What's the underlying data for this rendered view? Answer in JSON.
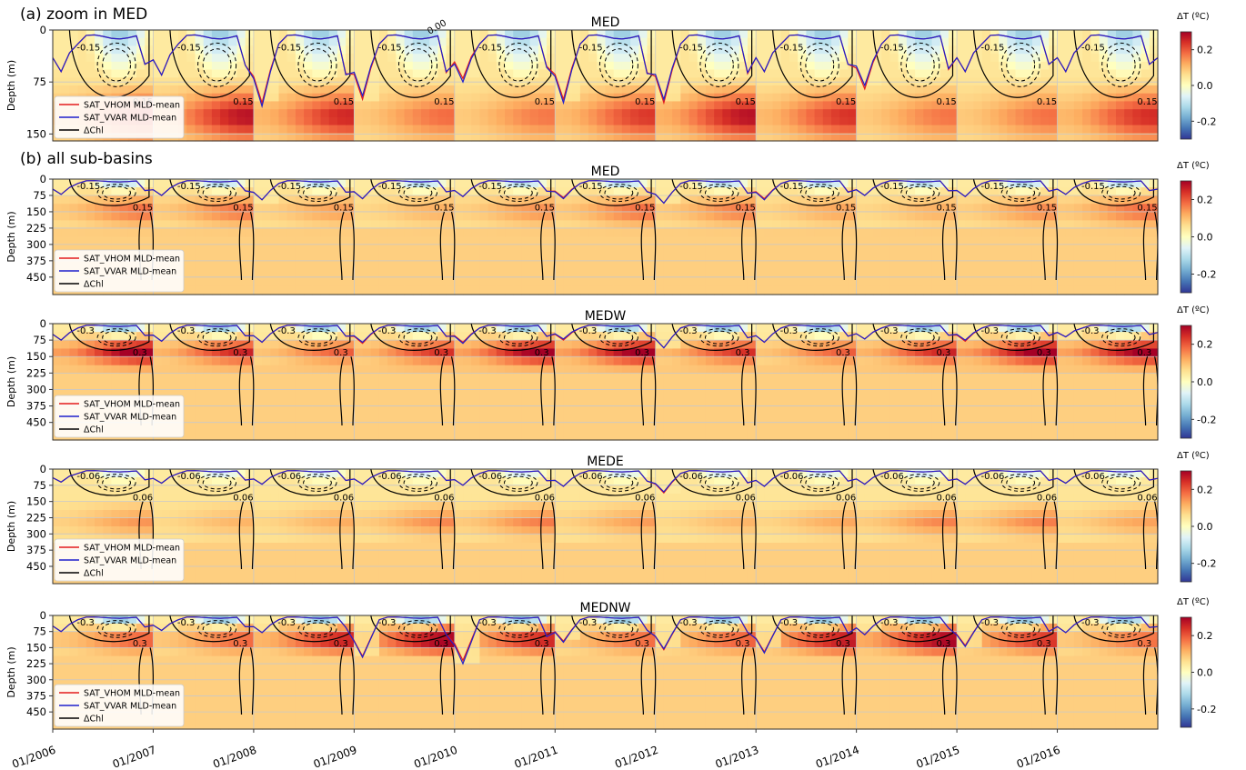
{
  "figure": {
    "section_a_label": "(a) zoom in MED",
    "section_b_label": "(b) all sub-basins"
  },
  "colors": {
    "vhom_line": "#e41a1c",
    "vvar_line": "#1f1fcc",
    "chl_contour": "#000000",
    "grid": "#c8c8c8"
  },
  "colorbar": {
    "cmap": "RdYlBu_r",
    "range": [
      -0.3,
      0.3
    ]
  },
  "chart_data": [
    {
      "type": "heatmap",
      "title": "MED",
      "ylabel": "Depth (m)",
      "xlabel": "",
      "xlim": [
        "2006-01",
        "2016-12"
      ],
      "ylim": [
        160,
        0
      ],
      "yticks": [
        0,
        75,
        150
      ],
      "xticks_shown": false,
      "grid": true,
      "colorbar_label": "ΔT (ºC)",
      "colorbar_ticks": [
        "0.2",
        "0.0",
        "-0.2"
      ],
      "legend": {
        "placement": "lower-left",
        "entries": [
          "SAT_VHOM MLD-mean",
          "SAT_VVAR MLD-mean",
          "ΔChl"
        ]
      },
      "series": [
        {
          "name": "SAT_VHOM MLD-mean",
          "kind": "line",
          "mld_winter_max_by_year": [
            60,
            65,
            105,
            100,
            70,
            100,
            105,
            60,
            85,
            60,
            60
          ]
        },
        {
          "name": "SAT_VVAR MLD-mean",
          "kind": "line",
          "mld_winter_max_by_year": [
            60,
            65,
            110,
            95,
            75,
            105,
            100,
            60,
            80,
            60,
            60
          ]
        },
        {
          "name": "ΔChl",
          "kind": "contour"
        }
      ],
      "contour_labels": [
        "-0.15",
        "0.00",
        "0.15"
      ],
      "field": {
        "surface_anomaly": -0.2,
        "subsurface_anomaly": 0.25,
        "subsurface_depth_range": [
          90,
          160
        ],
        "summer_mld": 10
      }
    },
    {
      "type": "heatmap",
      "title": "MED",
      "ylabel": "Depth (m)",
      "xlabel": "",
      "xlim": [
        "2006-01",
        "2016-12"
      ],
      "ylim": [
        530,
        0
      ],
      "yticks": [
        0,
        75,
        150,
        225,
        300,
        375,
        450
      ],
      "xticks_shown": false,
      "grid": true,
      "colorbar_label": "ΔT (ºC)",
      "colorbar_ticks": [
        "0.2",
        "0.0",
        "-0.2"
      ],
      "legend": {
        "placement": "lower-left",
        "entries": [
          "SAT_VHOM MLD-mean",
          "SAT_VVAR MLD-mean",
          "ΔChl"
        ]
      },
      "series": [
        {
          "name": "SAT_VHOM MLD-mean",
          "kind": "line",
          "mld_winter_max_by_year": [
            70,
            75,
            95,
            90,
            80,
            85,
            110,
            90,
            75,
            80,
            70
          ]
        },
        {
          "name": "SAT_VVAR MLD-mean",
          "kind": "line",
          "mld_winter_max_by_year": [
            70,
            75,
            95,
            90,
            80,
            90,
            110,
            95,
            75,
            80,
            70
          ]
        },
        {
          "name": "ΔChl",
          "kind": "contour"
        }
      ],
      "contour_labels": [
        "-0.15",
        "0.15"
      ],
      "field": {
        "surface_anomaly": -0.2,
        "subsurface_anomaly": 0.15,
        "subsurface_depth_range": [
          60,
          230
        ],
        "summer_mld": 10
      }
    },
    {
      "type": "heatmap",
      "title": "MEDW",
      "ylabel": "Depth (m)",
      "xlabel": "",
      "xlim": [
        "2006-01",
        "2016-12"
      ],
      "ylim": [
        530,
        0
      ],
      "yticks": [
        0,
        75,
        150,
        225,
        300,
        375,
        450
      ],
      "xticks_shown": false,
      "grid": true,
      "colorbar_label": "ΔT (ºC)",
      "colorbar_ticks": [
        "0.2",
        "0.0",
        "-0.2"
      ],
      "legend": {
        "placement": "lower-left",
        "entries": [
          "SAT_VHOM MLD-mean",
          "SAT_VVAR MLD-mean",
          "ΔChl"
        ]
      },
      "series": [
        {
          "name": "SAT_VHOM MLD-mean",
          "kind": "line",
          "mld_winter_max_by_year": [
            75,
            80,
            85,
            90,
            85,
            75,
            110,
            85,
            70,
            80,
            60
          ]
        },
        {
          "name": "SAT_VVAR MLD-mean",
          "kind": "line",
          "mld_winter_max_by_year": [
            75,
            80,
            85,
            85,
            90,
            70,
            110,
            85,
            70,
            75,
            60
          ]
        },
        {
          "name": "ΔChl",
          "kind": "contour"
        }
      ],
      "contour_labels": [
        "-0.3",
        "0.3"
      ],
      "field": {
        "surface_anomaly": -0.25,
        "subsurface_anomaly": 0.3,
        "subsurface_depth_range": [
          60,
          200
        ],
        "summer_mld": 10
      }
    },
    {
      "type": "heatmap",
      "title": "MEDE",
      "ylabel": "Depth (m)",
      "xlabel": "",
      "xlim": [
        "2006-01",
        "2016-12"
      ],
      "ylim": [
        530,
        0
      ],
      "yticks": [
        0,
        75,
        150,
        225,
        300,
        375,
        450
      ],
      "xticks_shown": false,
      "grid": true,
      "colorbar_label": "ΔT (ºC)",
      "colorbar_ticks": [
        "0.2",
        "0.0",
        "-0.2"
      ],
      "legend": {
        "placement": "lower-left",
        "entries": [
          "SAT_VHOM MLD-mean",
          "SAT_VVAR MLD-mean",
          "ΔChl"
        ]
      },
      "series": [
        {
          "name": "SAT_VHOM MLD-mean",
          "kind": "line",
          "mld_winter_max_by_year": [
            60,
            65,
            70,
            70,
            75,
            80,
            110,
            80,
            70,
            70,
            65
          ]
        },
        {
          "name": "SAT_VVAR MLD-mean",
          "kind": "line",
          "mld_winter_max_by_year": [
            60,
            65,
            70,
            70,
            75,
            80,
            105,
            80,
            70,
            70,
            65
          ]
        },
        {
          "name": "ΔChl",
          "kind": "contour"
        }
      ],
      "contour_labels": [
        "-0.06",
        "0.06"
      ],
      "field": {
        "surface_anomaly": -0.15,
        "subsurface_anomaly": 0.12,
        "subsurface_depth_range": [
          150,
          340
        ],
        "summer_mld": 10
      }
    },
    {
      "type": "heatmap",
      "title": "MEDNW",
      "ylabel": "Depth (m)",
      "xlabel": "",
      "xlim": [
        "2006-01",
        "2016-12"
      ],
      "ylim": [
        530,
        0
      ],
      "yticks": [
        0,
        75,
        150,
        225,
        300,
        375,
        450
      ],
      "xticks": [
        "01/2006",
        "01/2007",
        "01/2008",
        "01/2009",
        "01/2010",
        "01/2011",
        "01/2012",
        "01/2013",
        "01/2014",
        "01/2015",
        "01/2016"
      ],
      "grid": true,
      "colorbar_label": "ΔT (ºC)",
      "colorbar_ticks": [
        "0.2",
        "0.0",
        "-0.2"
      ],
      "legend": {
        "placement": "lower-left",
        "entries": [
          "SAT_VHOM MLD-mean",
          "SAT_VVAR MLD-mean",
          "ΔChl"
        ]
      },
      "series": [
        {
          "name": "SAT_VHOM MLD-mean",
          "kind": "line",
          "mld_winter_max_by_year": [
            75,
            70,
            80,
            190,
            210,
            120,
            160,
            170,
            90,
            140,
            80
          ]
        },
        {
          "name": "SAT_VVAR MLD-mean",
          "kind": "line",
          "mld_winter_max_by_year": [
            75,
            70,
            80,
            195,
            225,
            125,
            155,
            175,
            90,
            145,
            80
          ]
        },
        {
          "name": "ΔChl",
          "kind": "contour"
        }
      ],
      "contour_labels": [
        "-0.3",
        "0.3"
      ],
      "field": {
        "surface_anomaly": -0.25,
        "subsurface_anomaly": 0.3,
        "subsurface_depth_range": [
          40,
          190
        ],
        "summer_mld": 10
      }
    }
  ]
}
